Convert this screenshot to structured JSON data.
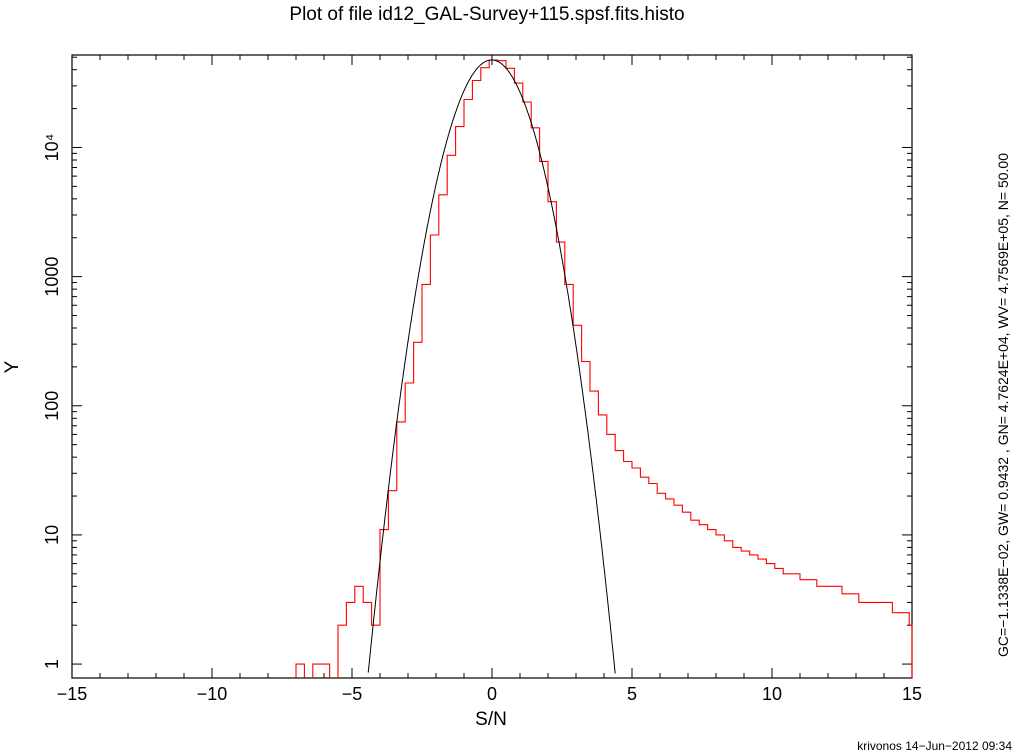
{
  "chart_data": {
    "type": "line",
    "title": "Plot of file id12_GAL-Survey+115.spsf.fits.histo",
    "xlabel": "S/N",
    "ylabel": "Y",
    "xlim": [
      -15,
      15
    ],
    "ylim": [
      0.78,
      52000
    ],
    "yscale": "log",
    "grid": false,
    "x_tick_labels": [
      "−15",
      "−10",
      "−5",
      "0",
      "5",
      "10",
      "15"
    ],
    "x_tick_values": [
      -15,
      -10,
      -5,
      0,
      5,
      10,
      15
    ],
    "y_tick_labels": [
      "1",
      "10",
      "100",
      "1000",
      "10⁴"
    ],
    "y_tick_values": [
      1,
      10,
      100,
      1000,
      10000
    ],
    "side_annotation": "GC=−1.1338E−02, GW= 0.9432     , GN= 4.7624E+04, WV= 4.7569E+05,  N=  50.00",
    "credit": "krivonos 14−Jun−2012 09:34",
    "series": [
      {
        "style": "step",
        "color": "#ff0000",
        "x": [
          -7.0,
          -6.7,
          -6.4,
          -6.1,
          -5.8,
          -5.5,
          -5.2,
          -4.9,
          -4.6,
          -4.3,
          -4.0,
          -3.7,
          -3.4,
          -3.1,
          -2.8,
          -2.5,
          -2.2,
          -1.9,
          -1.6,
          -1.3,
          -1.0,
          -0.7,
          -0.4,
          -0.1,
          0.2,
          0.5,
          0.8,
          1.1,
          1.4,
          1.7,
          2.0,
          2.3,
          2.6,
          2.9,
          3.2,
          3.5,
          3.8,
          4.1,
          4.4,
          4.7,
          5.0,
          5.3,
          5.6,
          5.9,
          6.2,
          6.5,
          6.8,
          7.1,
          7.4,
          7.7,
          8.0,
          8.3,
          8.6,
          8.9,
          9.2,
          9.5,
          9.8,
          10.1,
          10.4,
          10.7,
          11.0,
          11.3,
          11.6,
          11.9,
          12.2,
          12.5,
          12.8,
          13.1,
          13.4,
          13.7,
          14.0,
          14.3,
          14.6,
          14.9
        ],
        "values": [
          1,
          0,
          1,
          1,
          0,
          2,
          3,
          4,
          3,
          2,
          11,
          22,
          75,
          150,
          310,
          870,
          2100,
          4300,
          8700,
          14500,
          23500,
          33000,
          41500,
          47600,
          47000,
          41000,
          31500,
          22500,
          14200,
          7800,
          3800,
          1850,
          870,
          420,
          220,
          130,
          85,
          60,
          45,
          37,
          33,
          28,
          25,
          21,
          19,
          17,
          15,
          13,
          12,
          11,
          10,
          9,
          8,
          7.5,
          7,
          6.5,
          6,
          5.5,
          5,
          5,
          4.5,
          4.5,
          4,
          4,
          4,
          3.5,
          3.5,
          3,
          3,
          3,
          3,
          2.5,
          2.5,
          2
        ],
        "note_steps": "last bin ends at 15"
      },
      {
        "style": "smooth",
        "color": "#000000",
        "model": "gaussian",
        "center": -0.011338,
        "sigma": 0.9432,
        "peak": 47624
      }
    ]
  }
}
